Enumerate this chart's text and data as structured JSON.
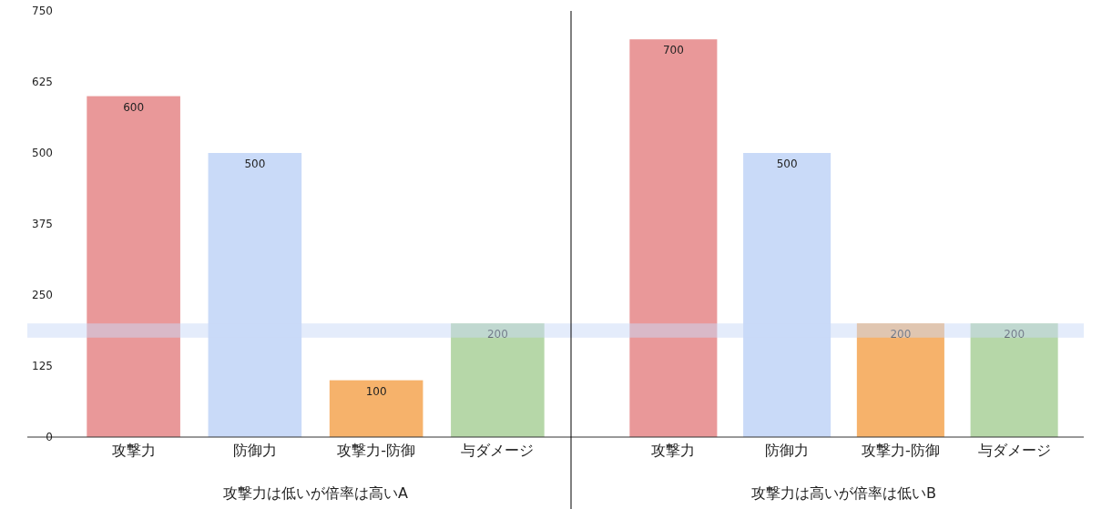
{
  "chart_data": [
    {
      "type": "bar",
      "xlabel": "攻撃力は低いが倍率は高いA",
      "categories": [
        "攻撃力",
        "防御力",
        "攻撃力-防御",
        "与ダメージ"
      ],
      "values": [
        600,
        500,
        100,
        200
      ],
      "colors": [
        "#e99899",
        "#c9daf8",
        "#f6b26b",
        "#b6d7a8"
      ],
      "data_labels": true,
      "ylim": [
        0,
        750
      ],
      "yticks": [
        0,
        125,
        250,
        375,
        500,
        625,
        750
      ],
      "bands": [
        {
          "axis": "y",
          "from": 175,
          "to": 200,
          "color": "#c9daf8"
        }
      ]
    },
    {
      "type": "bar",
      "xlabel": "攻撃力は高いが倍率は低いB",
      "categories": [
        "攻撃力",
        "防御力",
        "攻撃力-防御",
        "与ダメージ"
      ],
      "values": [
        700,
        500,
        200,
        200
      ],
      "colors": [
        "#e99899",
        "#c9daf8",
        "#f6b26b",
        "#b6d7a8"
      ],
      "data_labels": true,
      "ylim": [
        0,
        750
      ],
      "tick_labels": "x",
      "bands": [
        {
          "axis": "y",
          "from": 175,
          "to": 200,
          "color": "#c9daf8"
        }
      ]
    }
  ]
}
